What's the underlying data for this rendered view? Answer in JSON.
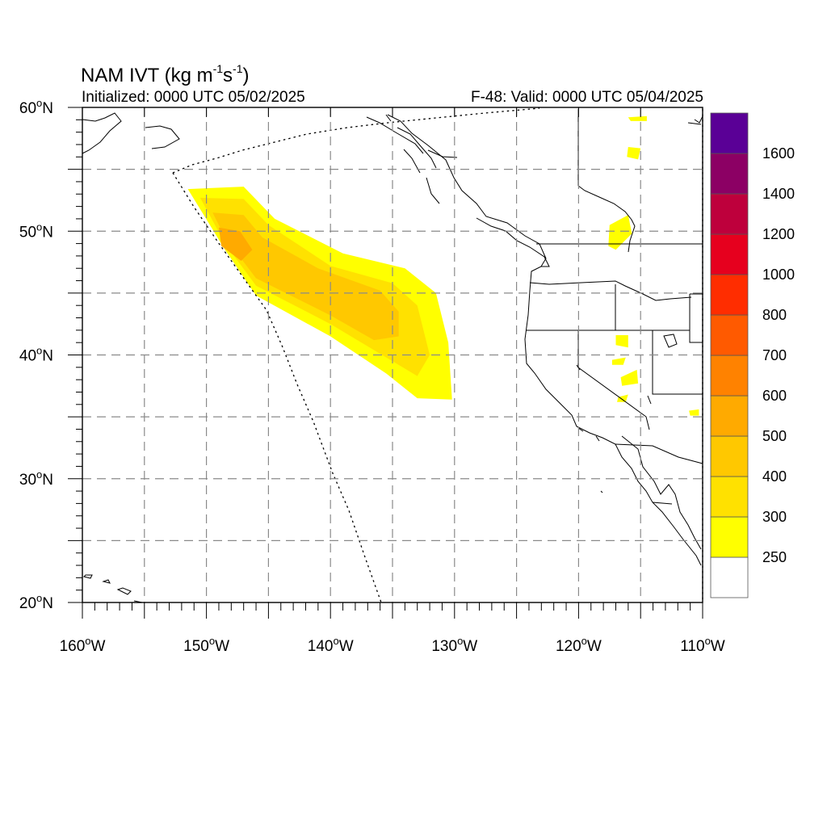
{
  "title": {
    "prefix": "NAM IVT (kg m",
    "exp1": "-1",
    "mid": "s",
    "exp2": "-1",
    "suffix": ")"
  },
  "subtitle_left": "Initialized: 0000 UTC 05/02/2025",
  "subtitle_right": "F-48: Valid: 0000 UTC 05/04/2025",
  "chart_data": {
    "type": "heatmap",
    "variable": "IVT",
    "units": "kg m-1 s-1",
    "lon_range": [
      -160,
      -110
    ],
    "lat_range": [
      20,
      60
    ],
    "x_ticks": [
      {
        "value": -160,
        "label": "160°W"
      },
      {
        "value": -150,
        "label": "150°W"
      },
      {
        "value": -140,
        "label": "140°W"
      },
      {
        "value": -130,
        "label": "130°W"
      },
      {
        "value": -120,
        "label": "120°W"
      },
      {
        "value": -110,
        "label": "110°W"
      }
    ],
    "y_ticks": [
      {
        "value": 60,
        "label": "60°N"
      },
      {
        "value": 50,
        "label": "50°N"
      },
      {
        "value": 40,
        "label": "40°N"
      },
      {
        "value": 30,
        "label": "30°N"
      },
      {
        "value": 20,
        "label": "20°N"
      }
    ],
    "gridlines": "dashed, every 5°",
    "colorbar": {
      "levels": [
        250,
        300,
        400,
        500,
        600,
        700,
        800,
        1000,
        1200,
        1400,
        1600
      ],
      "colors": [
        "#ffffff",
        "#ffff00",
        "#ffe100",
        "#ffc800",
        "#ffaa00",
        "#ff8200",
        "#ff5a00",
        "#ff2d00",
        "#e6001e",
        "#be003c",
        "#8c0064",
        "#5a0096"
      ]
    },
    "features": [
      {
        "name": "atmospheric-river",
        "bands": [
          {
            "level": 250,
            "outline": [
              [
                -151.5,
                53.4
              ],
              [
                -147,
                53.6
              ],
              [
                -144.5,
                51
              ],
              [
                -139,
                48.2
              ],
              [
                -134,
                47
              ],
              [
                -131.5,
                45
              ],
              [
                -130.5,
                41
              ],
              [
                -130.2,
                36.4
              ],
              [
                -133,
                36.5
              ],
              [
                -135.5,
                38.5
              ],
              [
                -140,
                41.5
              ],
              [
                -146,
                44.8
              ],
              [
                -148.5,
                48.5
              ]
            ]
          },
          {
            "level": 300,
            "outline": [
              [
                -150.5,
                52.7
              ],
              [
                -147,
                52.6
              ],
              [
                -145,
                50.5
              ],
              [
                -140,
                47.2
              ],
              [
                -135,
                45.8
              ],
              [
                -133,
                44
              ],
              [
                -132,
                40
              ],
              [
                -133,
                38.3
              ],
              [
                -135.5,
                39.8
              ],
              [
                -140,
                42.5
              ],
              [
                -146,
                45.6
              ],
              [
                -148.5,
                49
              ]
            ]
          },
          {
            "level": 400,
            "outline": [
              [
                -149.5,
                51.5
              ],
              [
                -147,
                51.3
              ],
              [
                -145.5,
                49.5
              ],
              [
                -141,
                47
              ],
              [
                -136,
                45.2
              ],
              [
                -134.5,
                43.5
              ],
              [
                -134.5,
                41.5
              ],
              [
                -136.5,
                41.2
              ],
              [
                -140,
                43.2
              ],
              [
                -146,
                46.2
              ],
              [
                -148.5,
                49.5
              ]
            ]
          },
          {
            "level": 500,
            "outline": [
              [
                -149,
                50.3
              ],
              [
                -147.3,
                50
              ],
              [
                -146.3,
                48.5
              ],
              [
                -147.2,
                47.6
              ],
              [
                -148.8,
                48.8
              ]
            ]
          }
        ]
      },
      {
        "name": "inland-patches",
        "level": 250,
        "patches": [
          [
            [
              -116,
              59.2
            ],
            [
              -114.5,
              59.3
            ],
            [
              -114.5,
              58.9
            ],
            [
              -115.8,
              58.9
            ]
          ],
          [
            [
              -116,
              56.8
            ],
            [
              -115,
              56.7
            ],
            [
              -115.2,
              55.8
            ],
            [
              -116.1,
              56
            ]
          ],
          [
            [
              -117.5,
              50.5
            ],
            [
              -116,
              51.3
            ],
            [
              -115.7,
              49.8
            ],
            [
              -117,
              48.5
            ],
            [
              -117.6,
              48.8
            ]
          ],
          [
            [
              -117,
              41.6
            ],
            [
              -116,
              41.6
            ],
            [
              -116,
              40.6
            ],
            [
              -117,
              40.8
            ]
          ],
          [
            [
              -117.3,
              39.6
            ],
            [
              -116.2,
              39.8
            ],
            [
              -116.4,
              39.2
            ],
            [
              -117.3,
              39.2
            ]
          ],
          [
            [
              -116.6,
              38.2
            ],
            [
              -115.3,
              38.8
            ],
            [
              -115.2,
              37.7
            ],
            [
              -116.5,
              37.5
            ]
          ],
          [
            [
              -116.8,
              36.6
            ],
            [
              -116,
              36.8
            ],
            [
              -116.2,
              36.2
            ],
            [
              -116.9,
              36.2
            ]
          ],
          [
            [
              -111.1,
              35.5
            ],
            [
              -110.3,
              35.6
            ],
            [
              -110.3,
              35.1
            ],
            [
              -111,
              35.1
            ]
          ]
        ]
      }
    ]
  }
}
